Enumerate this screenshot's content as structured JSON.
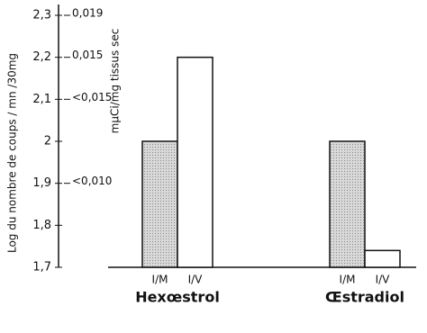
{
  "chart_data": {
    "type": "bar",
    "y_label": "Log du nombre de coups / mn /30mg",
    "y2_label": "mµCi/mg tissus sec",
    "categories": [
      "Hexœstrol",
      "Œstradiol"
    ],
    "series": [
      {
        "name": "I/M",
        "color": "#d9d9d9",
        "values": [
          2.0,
          2.0
        ]
      },
      {
        "name": "I/V",
        "color": "#ffffff",
        "values": [
          2.2,
          1.74
        ]
      }
    ],
    "ylim": [
      1.7,
      2.3
    ],
    "yticks": [
      {
        "value": 1.7,
        "label": "1,7"
      },
      {
        "value": 1.8,
        "label": "1,8"
      },
      {
        "value": 1.9,
        "label": "1,9"
      },
      2,
      {
        "value": 2.1,
        "label": "2,1"
      },
      {
        "value": 2.2,
        "label": "2,2"
      },
      {
        "value": 2.3,
        "label": "2,3"
      }
    ],
    "annotations": [
      {
        "y": 2.3,
        "text": "0,019"
      },
      {
        "y": 2.2,
        "text": "0,015"
      },
      {
        "y": 2.1,
        "text": "<0,015"
      },
      {
        "y": 1.9,
        "text": "<0,010"
      }
    ]
  }
}
